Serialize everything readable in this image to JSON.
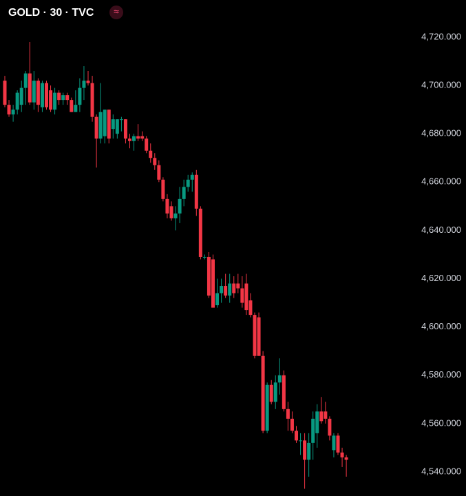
{
  "chart_data": {
    "type": "candlestick",
    "title": "GOLD · 30 · TVC",
    "badge": "≈",
    "up_color": "#089981",
    "down_color": "#f23645",
    "ylim": [
      4530,
      4735.4
    ],
    "yticks": [
      {
        "value": 4540,
        "label": "4,540.000"
      },
      {
        "value": 4560,
        "label": "4,560.000"
      },
      {
        "value": 4580,
        "label": "4,580.000"
      },
      {
        "value": 4600,
        "label": "4,600.000"
      },
      {
        "value": 4620,
        "label": "4,620.000"
      },
      {
        "value": 4640,
        "label": "4,640.000"
      },
      {
        "value": 4660,
        "label": "4,660.000"
      },
      {
        "value": 4680,
        "label": "4,680.000"
      },
      {
        "value": 4700,
        "label": "4,700.000"
      },
      {
        "value": 4720,
        "label": "4,720.000"
      }
    ],
    "open": [
      4702,
      4692,
      4688,
      4690,
      4692,
      4699,
      4705,
      4693,
      4702,
      4691,
      4701,
      4698,
      4690,
      4697,
      4694,
      4696,
      4694,
      4689,
      4692,
      4699,
      4702,
      4701,
      4687,
      4678,
      4679,
      4690,
      4682,
      4680,
      4686,
      4686,
      4678,
      4677,
      4679,
      4679,
      4678,
      4673,
      4670,
      4667,
      4661,
      4653,
      4650,
      4645,
      4647,
      4653,
      4658,
      4661,
      4663,
      4649,
      4629,
      4629,
      4628,
      4609,
      4614,
      4617,
      4613,
      4618,
      4618,
      4616,
      4618,
      4611,
      4605,
      4604,
      4588,
      4557,
      4576,
      4569,
      4577,
      4580,
      4566,
      4562,
      4557,
      4553,
      4553,
      4545,
      4552,
      4556,
      4565,
      4565,
      4562,
      4549,
      4555,
      4548,
      4546
    ],
    "high": [
      4704,
      4694,
      4692,
      4698,
      4702,
      4706,
      4718,
      4706,
      4703,
      4702,
      4702,
      4700,
      4699,
      4698,
      4697,
      4697,
      4695,
      4698,
      4703,
      4708,
      4706,
      4704,
      4688,
      4701,
      4690,
      4690,
      4688,
      4686,
      4687,
      4686,
      4680,
      4680,
      4684,
      4681,
      4679,
      4676,
      4672,
      4669,
      4662,
      4655,
      4652,
      4650,
      4658,
      4661,
      4663,
      4664,
      4665,
      4650,
      4630,
      4631,
      4630,
      4620,
      4620,
      4622,
      4622,
      4621,
      4622,
      4621,
      4622,
      4614,
      4606,
      4606,
      4590,
      4577,
      4578,
      4580,
      4587,
      4582,
      4569,
      4565,
      4559,
      4556,
      4556,
      4556,
      4565,
      4568,
      4571,
      4569,
      4563,
      4556,
      4556,
      4550,
      4547
    ],
    "low": [
      4691,
      4687,
      4685,
      4688,
      4689,
      4692,
      4692,
      4690,
      4689,
      4689,
      4690,
      4689,
      4688,
      4692,
      4692,
      4692,
      4689,
      4689,
      4689,
      4694,
      4700,
      4685,
      4666,
      4676,
      4676,
      4676,
      4678,
      4678,
      4681,
      4676,
      4674,
      4673,
      4677,
      4677,
      4672,
      4668,
      4665,
      4660,
      4652,
      4645,
      4644,
      4640,
      4643,
      4650,
      4656,
      4656,
      4646,
      4628,
      4628,
      4612,
      4608,
      4608,
      4610,
      4612,
      4610,
      4612,
      4614,
      4608,
      4605,
      4604,
      4587,
      4588,
      4556,
      4556,
      4568,
      4566,
      4572,
      4565,
      4557,
      4556,
      4552,
      4547,
      4533,
      4538,
      4545,
      4550,
      4560,
      4560,
      4553,
      4546,
      4547,
      4542,
      4538
    ],
    "close": [
      4692,
      4688,
      4690,
      4697,
      4699,
      4705,
      4693,
      4702,
      4692,
      4701,
      4691,
      4690,
      4697,
      4694,
      4696,
      4694,
      4689,
      4692,
      4699,
      4702,
      4701,
      4687,
      4678,
      4689,
      4690,
      4678,
      4686,
      4686,
      4686,
      4678,
      4677,
      4679,
      4678,
      4678,
      4673,
      4670,
      4667,
      4661,
      4653,
      4647,
      4645,
      4647,
      4653,
      4658,
      4661,
      4663,
      4649,
      4629,
      4629,
      4613,
      4608,
      4614,
      4617,
      4613,
      4618,
      4614,
      4616,
      4610,
      4607,
      4605,
      4588,
      4588,
      4557,
      4576,
      4569,
      4577,
      4580,
      4566,
      4562,
      4557,
      4553,
      4553,
      4545,
      4552,
      4562,
      4565,
      4561,
      4562,
      4555,
      4555,
      4548,
      4546,
      4545
    ]
  }
}
